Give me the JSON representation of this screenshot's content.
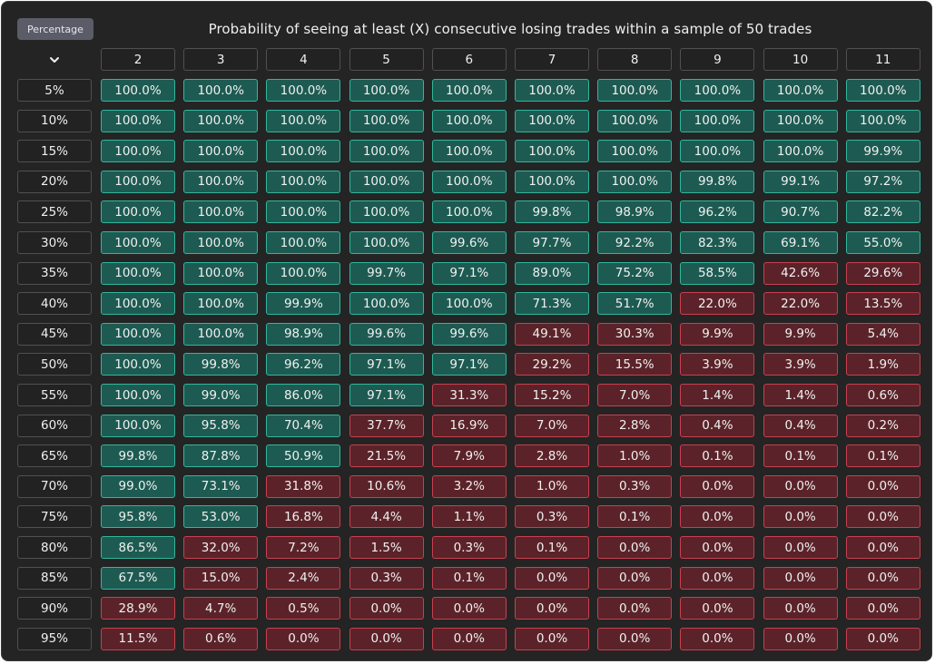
{
  "controls": {
    "mode_button": "Percentage",
    "sort_icon": "chevron-down-icon"
  },
  "colors": {
    "above_50": "#1d5b52",
    "above_50_border": "#32b69c",
    "below_50": "#5b2329",
    "below_50_border": "#c8404f",
    "background": "#242424"
  },
  "chart_data": {
    "type": "heatmap",
    "title": "Probability of seeing at least (X) consecutive losing trades within a sample of 50 trades",
    "columns": [
      "2",
      "3",
      "4",
      "5",
      "6",
      "7",
      "8",
      "9",
      "10",
      "11"
    ],
    "rows": [
      "5%",
      "10%",
      "15%",
      "20%",
      "25%",
      "30%",
      "35%",
      "40%",
      "45%",
      "50%",
      "55%",
      "60%",
      "65%",
      "70%",
      "75%",
      "80%",
      "85%",
      "90%",
      "95%"
    ],
    "threshold": 50,
    "values": [
      [
        "100.0%",
        "100.0%",
        "100.0%",
        "100.0%",
        "100.0%",
        "100.0%",
        "100.0%",
        "100.0%",
        "100.0%",
        "100.0%"
      ],
      [
        "100.0%",
        "100.0%",
        "100.0%",
        "100.0%",
        "100.0%",
        "100.0%",
        "100.0%",
        "100.0%",
        "100.0%",
        "100.0%"
      ],
      [
        "100.0%",
        "100.0%",
        "100.0%",
        "100.0%",
        "100.0%",
        "100.0%",
        "100.0%",
        "100.0%",
        "100.0%",
        "99.9%"
      ],
      [
        "100.0%",
        "100.0%",
        "100.0%",
        "100.0%",
        "100.0%",
        "100.0%",
        "100.0%",
        "99.8%",
        "99.1%",
        "97.2%"
      ],
      [
        "100.0%",
        "100.0%",
        "100.0%",
        "100.0%",
        "100.0%",
        "99.8%",
        "98.9%",
        "96.2%",
        "90.7%",
        "82.2%"
      ],
      [
        "100.0%",
        "100.0%",
        "100.0%",
        "100.0%",
        "99.6%",
        "97.7%",
        "92.2%",
        "82.3%",
        "69.1%",
        "55.0%"
      ],
      [
        "100.0%",
        "100.0%",
        "100.0%",
        "99.7%",
        "97.1%",
        "89.0%",
        "75.2%",
        "58.5%",
        "42.6%",
        "29.6%"
      ],
      [
        "100.0%",
        "100.0%",
        "99.9%",
        "100.0%",
        "100.0%",
        "71.3%",
        "51.7%",
        "22.0%",
        "22.0%",
        "13.5%"
      ],
      [
        "100.0%",
        "100.0%",
        "98.9%",
        "99.6%",
        "99.6%",
        "49.1%",
        "30.3%",
        "9.9%",
        "9.9%",
        "5.4%"
      ],
      [
        "100.0%",
        "99.8%",
        "96.2%",
        "97.1%",
        "97.1%",
        "29.2%",
        "15.5%",
        "3.9%",
        "3.9%",
        "1.9%"
      ],
      [
        "100.0%",
        "99.0%",
        "86.0%",
        "97.1%",
        "31.3%",
        "15.2%",
        "7.0%",
        "1.4%",
        "1.4%",
        "0.6%"
      ],
      [
        "100.0%",
        "95.8%",
        "70.4%",
        "37.7%",
        "16.9%",
        "7.0%",
        "2.8%",
        "0.4%",
        "0.4%",
        "0.2%"
      ],
      [
        "99.8%",
        "87.8%",
        "50.9%",
        "21.5%",
        "7.9%",
        "2.8%",
        "1.0%",
        "0.1%",
        "0.1%",
        "0.1%"
      ],
      [
        "99.0%",
        "73.1%",
        "31.8%",
        "10.6%",
        "3.2%",
        "1.0%",
        "0.3%",
        "0.0%",
        "0.0%",
        "0.0%"
      ],
      [
        "95.8%",
        "53.0%",
        "16.8%",
        "4.4%",
        "1.1%",
        "0.3%",
        "0.1%",
        "0.0%",
        "0.0%",
        "0.0%"
      ],
      [
        "86.5%",
        "32.0%",
        "7.2%",
        "1.5%",
        "0.3%",
        "0.1%",
        "0.0%",
        "0.0%",
        "0.0%",
        "0.0%"
      ],
      [
        "67.5%",
        "15.0%",
        "2.4%",
        "0.3%",
        "0.1%",
        "0.0%",
        "0.0%",
        "0.0%",
        "0.0%",
        "0.0%"
      ],
      [
        "28.9%",
        "4.7%",
        "0.5%",
        "0.0%",
        "0.0%",
        "0.0%",
        "0.0%",
        "0.0%",
        "0.0%",
        "0.0%"
      ],
      [
        "11.5%",
        "0.6%",
        "0.0%",
        "0.0%",
        "0.0%",
        "0.0%",
        "0.0%",
        "0.0%",
        "0.0%",
        "0.0%"
      ]
    ]
  }
}
